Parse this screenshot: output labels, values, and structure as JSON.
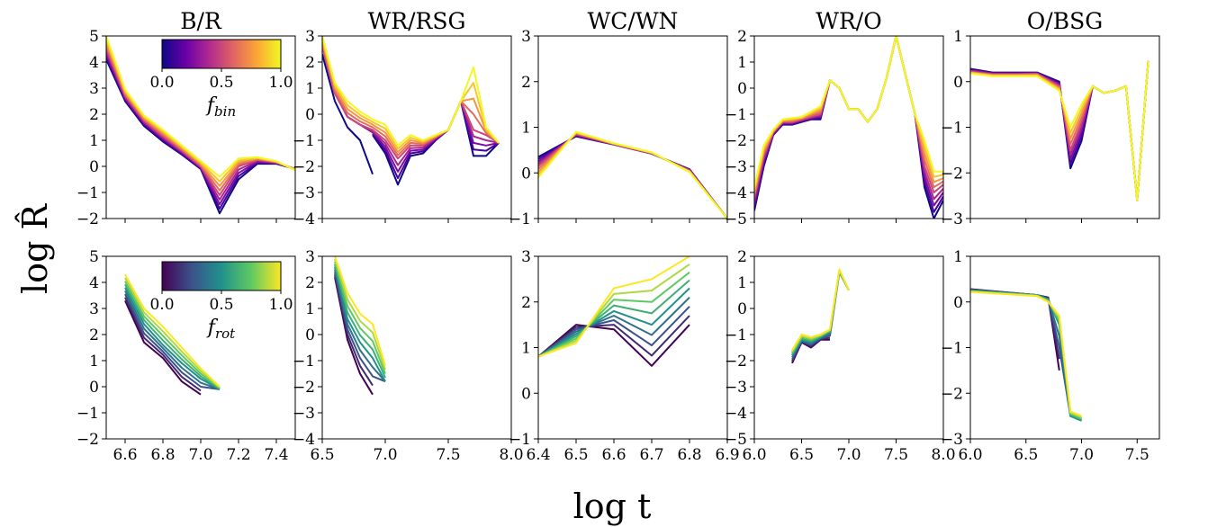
{
  "figure": {
    "xlabel": "log t",
    "ylabel": "log R̂",
    "colorbars": [
      {
        "row": 0,
        "label": "f",
        "sub": "bin",
        "ticks": [
          "0.0",
          "0.5",
          "1.0"
        ],
        "colormap": "plasma",
        "colors": [
          "#0d0887",
          "#6a00a8",
          "#b12a90",
          "#e16462",
          "#fca636",
          "#f0f921"
        ]
      },
      {
        "row": 1,
        "label": "f",
        "sub": "rot",
        "ticks": [
          "0.0",
          "0.5",
          "1.0"
        ],
        "colormap": "viridis",
        "colors": [
          "#440154",
          "#3b528b",
          "#21918c",
          "#5ec962",
          "#fde725"
        ]
      }
    ]
  },
  "chart_data": [
    {
      "type": "line",
      "row": 0,
      "col": 0,
      "title": "B/R",
      "xlim": [
        6.5,
        7.5
      ],
      "ylim": [
        -2,
        5
      ],
      "xticks": [
        6.6,
        6.8,
        7.0,
        7.2,
        7.4
      ],
      "yticks": [
        -2,
        -1,
        0,
        1,
        2,
        3,
        4,
        5
      ],
      "show_xticklabels": false,
      "colormap": "plasma",
      "x": [
        6.5,
        6.6,
        6.7,
        6.8,
        6.9,
        7.0,
        7.1,
        7.2,
        7.3,
        7.4,
        7.5
      ],
      "series": [
        {
          "f": 0.0,
          "values": [
            4.1,
            2.5,
            1.55,
            0.95,
            0.45,
            -0.1,
            -1.8,
            -0.5,
            0.1,
            0.1,
            -0.1
          ]
        },
        {
          "f": 0.5,
          "values": [
            4.5,
            2.7,
            1.75,
            1.15,
            0.6,
            0.0,
            -1.1,
            0.0,
            0.25,
            0.15,
            -0.1
          ]
        },
        {
          "f": 1.0,
          "values": [
            5.0,
            2.95,
            1.95,
            1.4,
            0.8,
            0.2,
            -0.4,
            0.3,
            0.35,
            0.2,
            -0.15
          ]
        }
      ]
    },
    {
      "type": "line",
      "row": 0,
      "col": 1,
      "title": "WR/RSG",
      "xlim": [
        6.5,
        8.0
      ],
      "ylim": [
        -4,
        3
      ],
      "xticks": [
        6.5,
        7.0,
        7.5,
        8.0
      ],
      "yticks": [
        -4,
        -3,
        -2,
        -1,
        0,
        1,
        2,
        3
      ],
      "show_xticklabels": false,
      "colormap": "plasma",
      "x": [
        6.5,
        6.6,
        6.7,
        6.8,
        6.9,
        7.0,
        7.1,
        7.2,
        7.3,
        7.4,
        7.5,
        7.6,
        7.7,
        7.8,
        7.9
      ],
      "series": [
        {
          "f": 0.0,
          "values": [
            2.3,
            0.5,
            -0.5,
            -1.0,
            -2.3,
            null,
            null,
            null,
            null,
            null,
            null,
            null,
            null,
            null,
            null
          ]
        },
        {
          "f": 0.0,
          "values": [
            null,
            null,
            null,
            null,
            -0.8,
            -1.5,
            -2.7,
            -1.6,
            -1.5,
            -1.0,
            -0.6,
            0.5,
            -1.6,
            -1.6,
            -1.1
          ]
        },
        {
          "f": 0.5,
          "values": [
            2.6,
            0.8,
            -0.1,
            -0.4,
            -0.6,
            -1.0,
            -1.7,
            -1.2,
            -1.2,
            -0.9,
            -0.6,
            0.5,
            -0.6,
            -0.8,
            -1.1
          ]
        },
        {
          "f": 1.0,
          "values": [
            3.0,
            1.2,
            0.5,
            0.1,
            -0.2,
            -0.4,
            -1.2,
            -0.8,
            -1.0,
            -0.8,
            -0.6,
            0.5,
            1.8,
            -0.5,
            -1.1
          ]
        }
      ]
    },
    {
      "type": "line",
      "row": 0,
      "col": 2,
      "title": "WC/WN",
      "xlim": [
        6.4,
        6.9
      ],
      "ylim": [
        -1,
        3
      ],
      "xticks": [
        6.4,
        6.5,
        6.6,
        6.7,
        6.8,
        6.9
      ],
      "yticks": [
        -1,
        0,
        1,
        2,
        3
      ],
      "show_xticklabels": false,
      "colormap": "plasma",
      "x": [
        6.4,
        6.5,
        6.6,
        6.7,
        6.8,
        6.9
      ],
      "series": [
        {
          "f": 0.0,
          "values": [
            0.35,
            0.8,
            0.62,
            0.42,
            0.08,
            -1.0
          ]
        },
        {
          "f": 0.5,
          "values": [
            0.15,
            0.85,
            0.63,
            0.43,
            0.05,
            -1.0
          ]
        },
        {
          "f": 1.0,
          "values": [
            -0.1,
            0.9,
            0.65,
            0.45,
            0.02,
            -1.0
          ]
        }
      ]
    },
    {
      "type": "line",
      "row": 0,
      "col": 3,
      "title": "WR/O",
      "xlim": [
        6.0,
        8.0
      ],
      "ylim": [
        -5,
        2
      ],
      "xticks": [
        6.0,
        6.5,
        7.0,
        7.5,
        8.0
      ],
      "yticks": [
        -5,
        -4,
        -3,
        -2,
        -1,
        0,
        1,
        2
      ],
      "show_xticklabels": false,
      "colormap": "plasma",
      "x": [
        6.0,
        6.1,
        6.2,
        6.3,
        6.4,
        6.5,
        6.6,
        6.7,
        6.8,
        6.9,
        7.0,
        7.1,
        7.2,
        7.3,
        7.4,
        7.5,
        7.6,
        7.7,
        7.8,
        7.9,
        8.0
      ],
      "series": [
        {
          "f": 0.0,
          "values": [
            -4.7,
            -3.0,
            -1.8,
            -1.4,
            -1.4,
            -1.3,
            -1.2,
            -1.2,
            0.3,
            0.0,
            -0.8,
            -0.8,
            -1.3,
            -0.8,
            0.4,
            2.0,
            0.5,
            -1.0,
            -3.8,
            -5.0,
            -4.3
          ]
        },
        {
          "f": 0.5,
          "values": [
            -4.2,
            -2.6,
            -1.7,
            -1.3,
            -1.3,
            -1.2,
            -1.1,
            -1.0,
            0.3,
            0.0,
            -0.8,
            -0.8,
            -1.3,
            -0.8,
            0.4,
            2.0,
            0.5,
            -1.0,
            -3.0,
            -4.0,
            -3.7
          ]
        },
        {
          "f": 1.0,
          "values": [
            -3.8,
            -2.2,
            -1.6,
            -1.2,
            -1.15,
            -1.1,
            -0.9,
            -0.7,
            0.3,
            0.0,
            -0.8,
            -0.8,
            -1.3,
            -0.8,
            0.4,
            2.0,
            0.5,
            -1.0,
            -2.0,
            -3.2,
            -3.2
          ]
        }
      ]
    },
    {
      "type": "line",
      "row": 0,
      "col": 4,
      "title": "O/BSG",
      "xlim": [
        6.0,
        7.7
      ],
      "ylim": [
        -3,
        1
      ],
      "xticks": [
        6.0,
        6.5,
        7.0,
        7.5
      ],
      "yticks": [
        -3,
        -2,
        -1,
        0,
        1
      ],
      "show_xticklabels": false,
      "colormap": "plasma",
      "x": [
        6.0,
        6.2,
        6.4,
        6.6,
        6.8,
        6.9,
        7.0,
        7.1,
        7.2,
        7.3,
        7.4,
        7.5,
        7.6
      ],
      "series": [
        {
          "f": 0.0,
          "values": [
            0.28,
            0.2,
            0.2,
            0.2,
            0.0,
            -1.9,
            -1.3,
            -0.1,
            -0.25,
            -0.2,
            -0.1,
            -2.6,
            0.45
          ]
        },
        {
          "f": 0.5,
          "values": [
            0.22,
            0.16,
            0.16,
            0.17,
            -0.1,
            -1.5,
            -0.9,
            -0.1,
            -0.25,
            -0.2,
            -0.1,
            -2.6,
            0.45
          ]
        },
        {
          "f": 1.0,
          "values": [
            0.18,
            0.12,
            0.12,
            0.12,
            -0.2,
            -1.0,
            -0.5,
            -0.1,
            -0.25,
            -0.2,
            -0.1,
            -2.6,
            0.45
          ]
        }
      ]
    },
    {
      "type": "line",
      "row": 1,
      "col": 0,
      "title": "",
      "xlim": [
        6.5,
        7.5
      ],
      "ylim": [
        -2,
        5
      ],
      "xticks": [
        6.6,
        6.8,
        7.0,
        7.2,
        7.4
      ],
      "yticks": [
        -2,
        -1,
        0,
        1,
        2,
        3,
        4,
        5
      ],
      "show_xticklabels": true,
      "colormap": "viridis",
      "x": [
        6.6,
        6.7,
        6.8,
        6.9,
        7.0,
        7.1
      ],
      "series": [
        {
          "f": 0.0,
          "values": [
            3.3,
            1.7,
            1.1,
            0.2,
            -0.3,
            null
          ]
        },
        {
          "f": 0.5,
          "values": [
            3.8,
            2.4,
            1.6,
            0.9,
            0.3,
            -0.1
          ]
        },
        {
          "f": 1.0,
          "values": [
            4.3,
            3.0,
            2.3,
            1.5,
            0.7,
            0.0
          ]
        }
      ]
    },
    {
      "type": "line",
      "row": 1,
      "col": 1,
      "title": "",
      "xlim": [
        6.5,
        8.0
      ],
      "ylim": [
        -4,
        3
      ],
      "xticks": [
        6.5,
        7.0,
        7.5,
        8.0
      ],
      "yticks": [
        -4,
        -3,
        -2,
        -1,
        0,
        1,
        2,
        3
      ],
      "show_xticklabels": true,
      "colormap": "viridis",
      "x": [
        6.6,
        6.7,
        6.8,
        6.9,
        7.0
      ],
      "series": [
        {
          "f": 0.0,
          "values": [
            2.2,
            -0.2,
            -1.5,
            -2.3,
            null
          ]
        },
        {
          "f": 0.5,
          "values": [
            2.6,
            0.6,
            -0.3,
            -0.9,
            -1.8
          ]
        },
        {
          "f": 1.0,
          "values": [
            3.0,
            1.6,
            0.8,
            0.4,
            -1.2
          ]
        }
      ]
    },
    {
      "type": "line",
      "row": 1,
      "col": 2,
      "title": "",
      "xlim": [
        6.4,
        6.9
      ],
      "ylim": [
        -1,
        3
      ],
      "xticks": [
        6.4,
        6.5,
        6.6,
        6.7,
        6.8,
        6.9
      ],
      "yticks": [
        -1,
        0,
        1,
        2,
        3
      ],
      "show_xticklabels": true,
      "colormap": "viridis",
      "x": [
        6.4,
        6.5,
        6.6,
        6.7,
        6.8
      ],
      "series": [
        {
          "f": 0.0,
          "values": [
            0.8,
            1.5,
            1.4,
            0.6,
            1.5
          ]
        },
        {
          "f": 0.5,
          "values": [
            0.8,
            1.3,
            1.8,
            1.5,
            2.3
          ]
        },
        {
          "f": 1.0,
          "values": [
            0.8,
            1.1,
            2.3,
            2.5,
            3.0
          ]
        }
      ]
    },
    {
      "type": "line",
      "row": 1,
      "col": 3,
      "title": "",
      "xlim": [
        6.0,
        8.0
      ],
      "ylim": [
        -5,
        2
      ],
      "xticks": [
        6.0,
        6.5,
        7.0,
        7.5,
        8.0
      ],
      "yticks": [
        -5,
        -4,
        -3,
        -2,
        -1,
        0,
        1,
        2
      ],
      "show_xticklabels": true,
      "colormap": "viridis",
      "x": [
        6.4,
        6.5,
        6.6,
        6.7,
        6.8,
        6.9,
        7.0
      ],
      "series": [
        {
          "f": 0.0,
          "values": [
            -2.1,
            -1.3,
            -1.5,
            -1.2,
            -1.2,
            null,
            null
          ]
        },
        {
          "f": 0.5,
          "values": [
            -1.8,
            -1.2,
            -1.3,
            -1.1,
            -0.9,
            1.4,
            0.7
          ]
        },
        {
          "f": 1.0,
          "values": [
            -1.6,
            -1.0,
            -1.1,
            -1.0,
            -0.8,
            1.5,
            0.7
          ]
        }
      ]
    },
    {
      "type": "line",
      "row": 1,
      "col": 4,
      "title": "",
      "xlim": [
        6.0,
        7.7
      ],
      "ylim": [
        -3,
        1
      ],
      "xticks": [
        6.0,
        6.5,
        7.0,
        7.5
      ],
      "yticks": [
        -3,
        -2,
        -1,
        0,
        1
      ],
      "show_xticklabels": true,
      "colormap": "viridis",
      "x": [
        6.0,
        6.6,
        6.7,
        6.8,
        6.9,
        7.0
      ],
      "series": [
        {
          "f": 0.0,
          "values": [
            0.28,
            0.15,
            0.1,
            -1.5,
            null,
            null
          ]
        },
        {
          "f": 0.5,
          "values": [
            0.25,
            0.15,
            0.05,
            -0.5,
            -2.5,
            -2.6
          ]
        },
        {
          "f": 1.0,
          "values": [
            0.22,
            0.13,
            0.0,
            -0.3,
            -2.4,
            -2.5
          ]
        }
      ]
    }
  ]
}
